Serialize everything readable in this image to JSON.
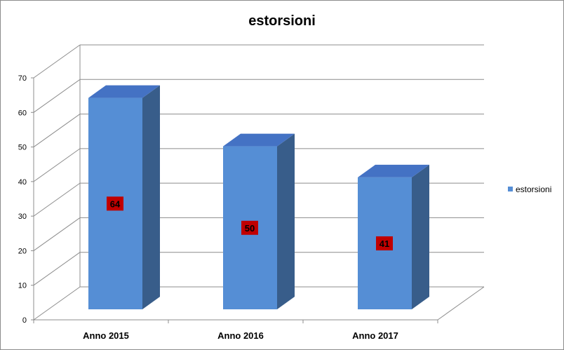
{
  "chart_data": {
    "type": "bar",
    "title": "estorsioni",
    "categories": [
      "Anno 2015",
      "Anno 2016",
      "Anno 2017"
    ],
    "series": [
      {
        "name": "estorsioni",
        "values": [
          64,
          50,
          41
        ]
      }
    ],
    "ylim": [
      0,
      70
    ],
    "yticks": [
      0,
      10,
      20,
      30,
      40,
      50,
      60,
      70
    ],
    "grid": true,
    "three_d": true,
    "legend_position": "right",
    "colors": {
      "bar_front": "#558ED5",
      "bar_side": "#385D8A",
      "bar_top": "#4472C4",
      "label_box": "#C00000",
      "grid": "#8c8c8c"
    }
  }
}
